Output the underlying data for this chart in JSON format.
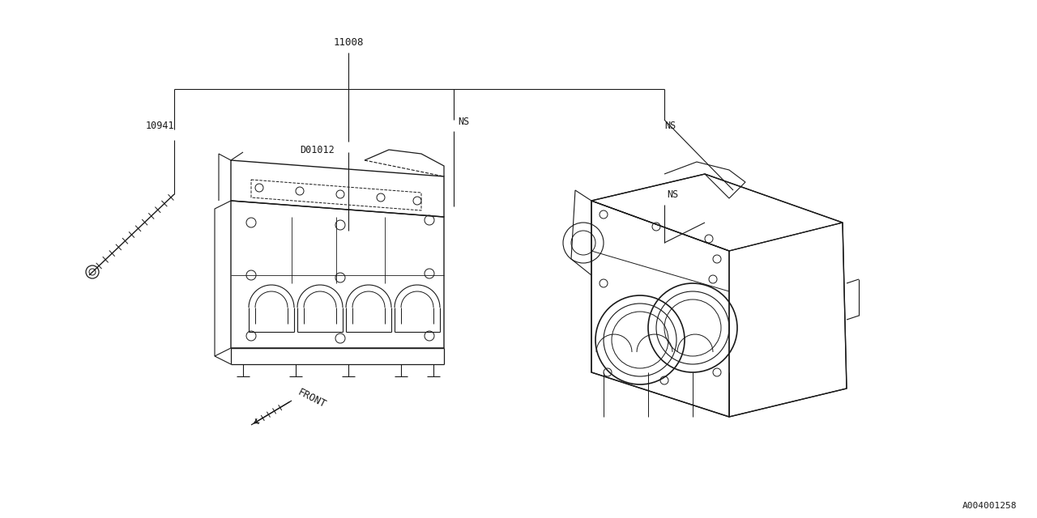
{
  "bg_color": "#ffffff",
  "line_color": "#1a1a1a",
  "fig_width": 12.8,
  "fig_height": 6.4,
  "dpi": 100,
  "label_11008": "11008",
  "label_10941": "10941",
  "label_D01012": "D01012",
  "label_NS1": "NS",
  "label_NS2": "NS",
  "label_front": "FRONT",
  "label_code": "A004001258",
  "leader_color": "#1a1a1a",
  "part_color": "#1a1a1a"
}
